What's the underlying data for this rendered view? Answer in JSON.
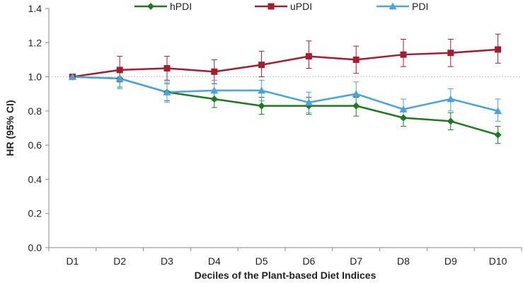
{
  "chart_data": {
    "type": "line",
    "categories": [
      "D1",
      "D2",
      "D3",
      "D4",
      "D5",
      "D6",
      "D7",
      "D8",
      "D9",
      "D10"
    ],
    "xlabel": "Deciles of the Plant-based Diet Indices",
    "ylabel": "HR (95% CI)",
    "ylim": [
      0,
      1.4
    ],
    "yticks": [
      "0.0",
      "0.2",
      "0.4",
      "0.6",
      "0.8",
      "1.0",
      "1.2",
      "1.4"
    ],
    "reference_line": 1.0,
    "legend_position": "top",
    "series": [
      {
        "name": "hPDI",
        "color": "#1e7a1e",
        "marker": "diamond",
        "values": [
          1.0,
          0.99,
          0.91,
          0.87,
          0.83,
          0.83,
          0.83,
          0.76,
          0.74,
          0.66
        ],
        "lower": [
          1.0,
          0.94,
          0.86,
          0.82,
          0.78,
          0.78,
          0.77,
          0.71,
          0.69,
          0.61
        ],
        "upper": [
          1.0,
          1.04,
          0.96,
          0.92,
          0.88,
          0.88,
          0.88,
          0.81,
          0.79,
          0.71
        ]
      },
      {
        "name": "uPDI",
        "color": "#a51c30",
        "marker": "square",
        "values": [
          1.0,
          1.04,
          1.05,
          1.03,
          1.07,
          1.12,
          1.1,
          1.13,
          1.14,
          1.16
        ],
        "lower": [
          1.0,
          0.97,
          0.98,
          0.96,
          1.0,
          1.05,
          1.02,
          1.06,
          1.06,
          1.08
        ],
        "upper": [
          1.0,
          1.12,
          1.12,
          1.1,
          1.15,
          1.21,
          1.18,
          1.22,
          1.22,
          1.25
        ]
      },
      {
        "name": "PDI",
        "color": "#4aa3df",
        "marker": "triangle",
        "values": [
          1.0,
          0.99,
          0.91,
          0.92,
          0.92,
          0.85,
          0.9,
          0.81,
          0.87,
          0.8
        ],
        "lower": [
          1.0,
          0.93,
          0.85,
          0.86,
          0.86,
          0.79,
          0.83,
          0.75,
          0.8,
          0.74
        ],
        "upper": [
          1.0,
          1.04,
          0.97,
          0.98,
          0.98,
          0.91,
          0.97,
          0.87,
          0.93,
          0.87
        ]
      }
    ]
  }
}
